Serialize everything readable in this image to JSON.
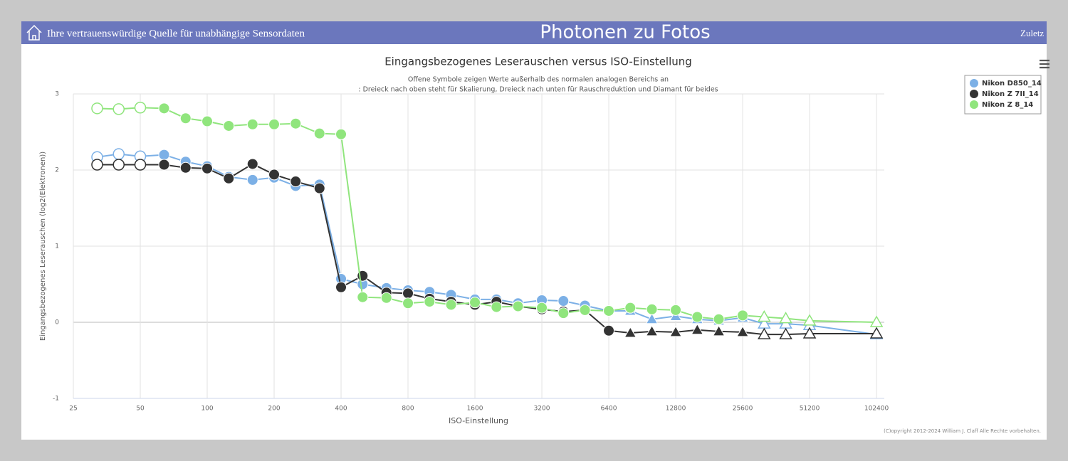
{
  "header": {
    "tagline": "Ihre vertrauenswürdige Quelle für unabhängige Sensordaten",
    "title": "Photonen zu Fotos",
    "nav": "Zuletz"
  },
  "chart_data": {
    "type": "line",
    "title": "Eingangsbezogenes Leserauschen versus ISO-Einstellung",
    "subtitle": [
      "Offene Symbole zeigen Werte außerhalb des normalen analogen Bereichs an",
      ": Dreieck nach oben steht für Skalierung, Dreieck nach unten für Rauschreduktion und Diamant für beides"
    ],
    "x_label": "ISO-Einstellung",
    "y_label": "Eingangsbezogenes Leserauschen (log2(Elektronen))",
    "log_x": true,
    "grid": true,
    "legend": "top-right",
    "xlim": [
      25,
      111000
    ],
    "xticks": [
      25,
      50,
      100,
      200,
      400,
      800,
      1600,
      3200,
      6400,
      12800,
      25600,
      51200,
      102400
    ],
    "ylim": [
      -1,
      3
    ],
    "yticks": [
      -1,
      0,
      1,
      2,
      3
    ],
    "x": [
      32,
      40,
      50,
      64,
      80,
      100,
      125,
      160,
      200,
      250,
      320,
      400,
      500,
      640,
      800,
      1000,
      1250,
      1600,
      2000,
      2500,
      3200,
      4000,
      5000,
      6400,
      8000,
      10000,
      12800,
      16000,
      20000,
      25600,
      32000,
      40000,
      51200,
      102400
    ],
    "series": [
      {
        "name": "Nikon D850_14",
        "color": "#7cb0e6",
        "values": [
          2.17,
          2.21,
          2.18,
          2.2,
          2.11,
          2.05,
          1.91,
          1.87,
          1.9,
          1.79,
          1.81,
          0.57,
          0.5,
          0.45,
          0.42,
          0.4,
          0.36,
          0.3,
          0.3,
          0.25,
          0.29,
          0.28,
          0.22,
          0.15,
          0.15,
          0.04,
          0.08,
          0.04,
          0.02,
          0.06,
          -0.02,
          -0.02,
          -0.04,
          -0.16
        ],
        "markers": [
          "open-circle",
          "open-circle",
          "open-circle",
          "circle",
          "circle",
          "circle",
          "circle",
          "circle",
          "circle",
          "circle",
          "circle",
          "circle",
          "circle",
          "circle",
          "circle",
          "circle",
          "circle",
          "circle",
          "circle",
          "circle",
          "circle",
          "circle",
          "circle",
          "circle",
          "triangle",
          "triangle",
          "triangle",
          "triangle",
          "triangle",
          "triangle",
          "open-triangle",
          "open-triangle",
          "open-triangle",
          "open-triangle"
        ]
      },
      {
        "name": "Nikon Z 7II_14",
        "color": "#333333",
        "values": [
          2.07,
          2.07,
          2.07,
          2.07,
          2.03,
          2.02,
          1.89,
          2.08,
          1.94,
          1.85,
          1.76,
          0.46,
          0.61,
          0.39,
          0.38,
          0.31,
          0.27,
          0.23,
          0.27,
          0.21,
          0.17,
          0.14,
          0.16,
          -0.11,
          -0.14,
          -0.12,
          -0.13,
          -0.1,
          -0.12,
          -0.13,
          -0.16,
          -0.16,
          -0.15,
          -0.15
        ],
        "markers": [
          "open-circle",
          "open-circle",
          "open-circle",
          "circle",
          "circle",
          "circle",
          "circle",
          "circle",
          "circle",
          "circle",
          "circle",
          "circle",
          "circle",
          "circle",
          "circle",
          "circle",
          "circle",
          "circle",
          "circle",
          "circle",
          "circle",
          "circle",
          "circle",
          "circle",
          "triangle",
          "triangle",
          "triangle",
          "triangle",
          "triangle",
          "triangle",
          "open-triangle",
          "open-triangle",
          "open-triangle",
          "open-triangle"
        ]
      },
      {
        "name": "Nikon Z 8_14",
        "color": "#90e57d",
        "values": [
          2.81,
          2.8,
          2.82,
          2.81,
          2.68,
          2.64,
          2.58,
          2.6,
          2.6,
          2.61,
          2.48,
          2.47,
          0.33,
          0.32,
          0.25,
          0.27,
          0.23,
          0.26,
          0.2,
          0.21,
          0.19,
          0.12,
          0.16,
          0.15,
          0.19,
          0.17,
          0.16,
          0.07,
          0.04,
          0.09,
          0.07,
          0.05,
          0.02,
          0.0
        ],
        "markers": [
          "open-circle",
          "open-circle",
          "open-circle",
          "circle",
          "circle",
          "circle",
          "circle",
          "circle",
          "circle",
          "circle",
          "circle",
          "circle",
          "circle",
          "circle",
          "circle",
          "circle",
          "circle",
          "circle",
          "circle",
          "circle",
          "circle",
          "circle",
          "circle",
          "circle",
          "circle",
          "circle",
          "circle",
          "circle",
          "circle",
          "circle",
          "open-triangle",
          "open-triangle",
          "open-triangle",
          "open-triangle"
        ]
      }
    ]
  },
  "copyright": "(C)opyright 2012-2024 William J. Claff Alle Rechte vorbehalten."
}
